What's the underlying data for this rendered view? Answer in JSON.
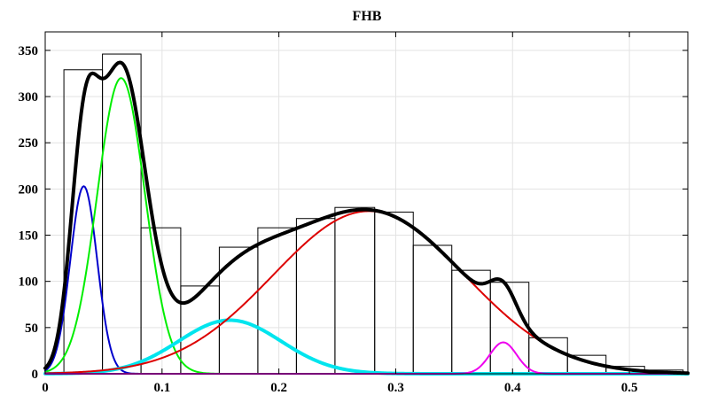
{
  "chart_data": {
    "type": "histogram-with-density-fits",
    "title": "FHB",
    "xlabel": "",
    "ylabel": "",
    "xlim": [
      0,
      0.55
    ],
    "ylim": [
      0,
      370
    ],
    "grid": true,
    "x_ticks": [
      0,
      0.1,
      0.2,
      0.3,
      0.4,
      0.5
    ],
    "x_tick_labels": [
      "0",
      "0.1",
      "0.2",
      "0.3",
      "0.4",
      "0.5"
    ],
    "y_ticks": [
      0,
      50,
      100,
      150,
      200,
      250,
      300,
      350
    ],
    "y_tick_labels": [
      "0",
      "50",
      "100",
      "150",
      "200",
      "250",
      "300",
      "350"
    ],
    "histogram": {
      "bin_edges": [
        0.016,
        0.049,
        0.082,
        0.116,
        0.149,
        0.182,
        0.215,
        0.248,
        0.282,
        0.315,
        0.348,
        0.381,
        0.414,
        0.447,
        0.48,
        0.513,
        0.546
      ],
      "counts": [
        329,
        346,
        158,
        95,
        137,
        158,
        168,
        180,
        175,
        139,
        112,
        99,
        39,
        20,
        8,
        4
      ]
    },
    "series": [
      {
        "color": "#0000cc",
        "kind": "gaussian",
        "mean": 0.033,
        "sd": 0.0115,
        "peak": 203,
        "line_width": 2
      },
      {
        "color": "#00ee00",
        "kind": "gaussian",
        "mean": 0.065,
        "sd": 0.0205,
        "peak": 320,
        "line_width": 2
      },
      {
        "color": "#00e5ee",
        "kind": "gaussian",
        "mean": 0.158,
        "sd": 0.044,
        "peak": 58,
        "line_width": 4
      },
      {
        "color": "#dd0000",
        "kind": "gaussian",
        "mean": 0.277,
        "sd": 0.082,
        "peak": 176,
        "line_width": 2
      },
      {
        "color": "#ee00ee",
        "kind": "gaussian",
        "mean": 0.392,
        "sd": 0.0115,
        "peak": 34,
        "line_width": 2
      },
      {
        "color": "#000000",
        "kind": "sum_of_components",
        "line_width": 4
      }
    ]
  }
}
